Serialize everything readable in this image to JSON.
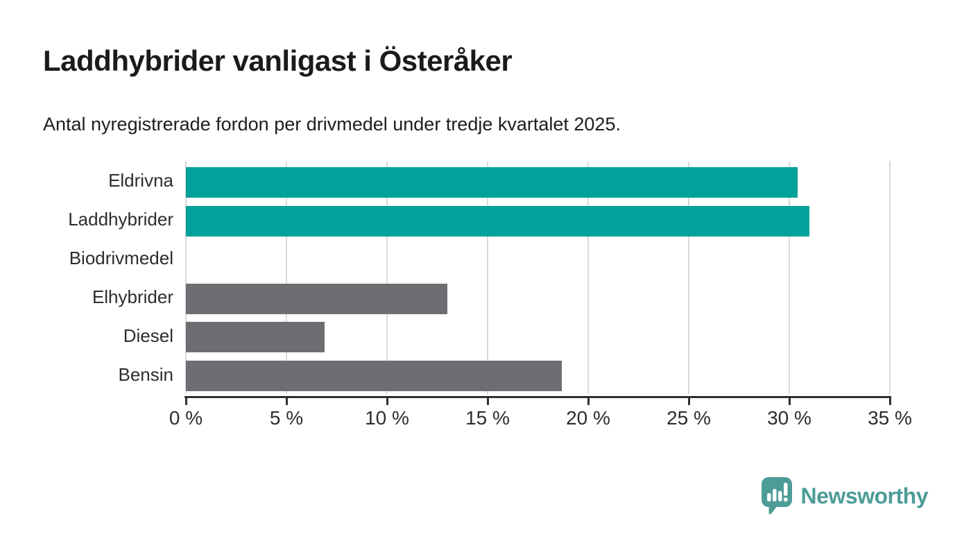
{
  "header": {
    "title": "Laddhybrider vanligast i Österåker",
    "subtitle": "Antal nyregistrerade fordon per drivmedel under tredje kvartalet 2025."
  },
  "chart_data": {
    "type": "bar",
    "orientation": "horizontal",
    "title": "Laddhybrider vanligast i Österåker",
    "subtitle": "Antal nyregistrerade fordon per drivmedel under tredje kvartalet 2025.",
    "categories": [
      "Eldrivna",
      "Laddhybrider",
      "Biodrivmedel",
      "Elhybrider",
      "Diesel",
      "Bensin"
    ],
    "values": [
      30.4,
      31.0,
      0,
      13.0,
      6.9,
      18.7
    ],
    "unit": "%",
    "bar_colors": [
      "#00a299",
      "#00a299",
      "#6e6e72",
      "#6e6e72",
      "#6e6e72",
      "#6e6e72"
    ],
    "highlight_color": "#00a299",
    "default_color": "#6e6e72",
    "xlim": [
      0,
      35
    ],
    "x_ticks": [
      0,
      5,
      10,
      15,
      20,
      25,
      30,
      35
    ],
    "x_tick_labels": [
      "0 %",
      "5 %",
      "10 %",
      "15 %",
      "20 %",
      "25 %",
      "30 %",
      "35 %"
    ],
    "grid": "vertical",
    "legend": "none"
  },
  "footer": {
    "brand": "Newsworthy"
  },
  "colors": {
    "bar_teal": "#00a299",
    "bar_gray": "#6e6e72",
    "gridline": "#d9d9d9",
    "axis": "#2f2f2f",
    "text": "#1d1d1d",
    "brand_teal": "#4d9c98"
  }
}
